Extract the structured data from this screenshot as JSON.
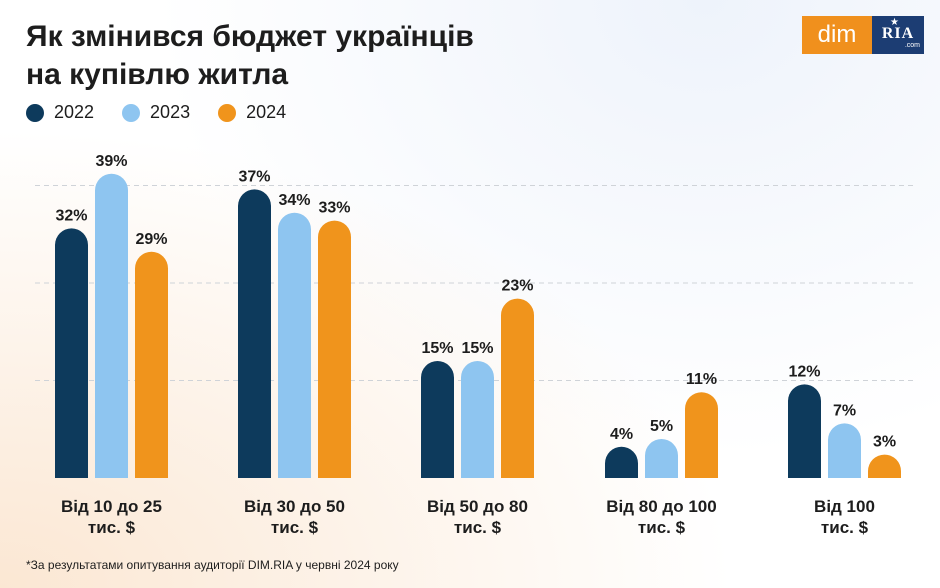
{
  "title_line1": "Як змінився бюджет українців",
  "title_line2": "на купівлю житла",
  "logo": {
    "dim": "dim",
    "ria": "RIA",
    "ria_suffix": ".com",
    "colors": {
      "dim_bg": "#f0901d",
      "ria_bg": "#1c3d73"
    }
  },
  "footnote": "*За результатами опитування аудиторії DIM.RIA у червні 2024 року",
  "chart_data": {
    "type": "bar",
    "categories": [
      [
        "Від 10 до 25",
        "тис. $"
      ],
      [
        "Від 30 до 50",
        "тис. $"
      ],
      [
        "Від 50 до 80",
        "тис. $"
      ],
      [
        "Від 80 до 100",
        "тис. $"
      ],
      [
        "Від 100",
        "тис. $"
      ]
    ],
    "series": [
      {
        "name": "2022",
        "color": "#0d3a5c",
        "values": [
          32,
          37,
          15,
          4,
          12
        ]
      },
      {
        "name": "2023",
        "color": "#8ec5f0",
        "values": [
          39,
          34,
          15,
          5,
          7
        ]
      },
      {
        "name": "2024",
        "color": "#f0941c",
        "values": [
          29,
          33,
          23,
          11,
          3
        ]
      }
    ],
    "value_suffix": "%",
    "ylim": [
      0,
      40
    ],
    "grid": true,
    "legend": "top-left"
  }
}
